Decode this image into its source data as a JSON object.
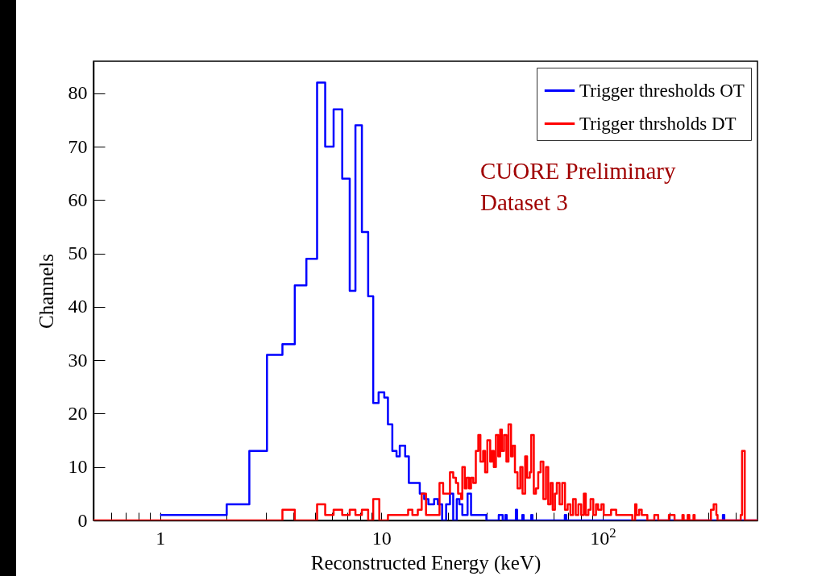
{
  "chart_data": {
    "type": "step",
    "xlabel": "Reconstructed Energy (keV)",
    "ylabel": "Channels",
    "log": "x",
    "xlim": [
      0.5,
      500
    ],
    "ylim": [
      0,
      86
    ],
    "xticks": [
      {
        "value": 0.6,
        "label": null
      },
      {
        "value": 0.7,
        "label": null
      },
      {
        "value": 0.8,
        "label": null
      },
      {
        "value": 0.9,
        "label": null
      },
      1,
      {
        "value": 2,
        "label": null
      },
      {
        "value": 3,
        "label": null
      },
      {
        "value": 4,
        "label": null
      },
      {
        "value": 5,
        "label": null
      },
      {
        "value": 6,
        "label": null
      },
      {
        "value": 7,
        "label": null
      },
      {
        "value": 8,
        "label": null
      },
      {
        "value": 9,
        "label": null
      },
      10,
      {
        "value": 20,
        "label": null
      },
      {
        "value": 30,
        "label": null
      },
      {
        "value": 40,
        "label": null
      },
      {
        "value": 50,
        "label": null
      },
      {
        "value": 60,
        "label": null
      },
      {
        "value": 70,
        "label": null
      },
      {
        "value": 80,
        "label": null
      },
      {
        "value": 90,
        "label": null
      },
      {
        "value": 100,
        "label": "10$^{2}$"
      },
      {
        "value": 200,
        "label": null
      },
      {
        "value": 300,
        "label": null
      },
      {
        "value": 400,
        "label": null
      }
    ],
    "yticks": [
      0,
      10,
      20,
      30,
      40,
      50,
      60,
      70,
      80
    ],
    "grid": false,
    "legend": "top right",
    "marker": "none",
    "line_style": "solid",
    "annotations": [
      "CUORE Preliminary",
      "Dataset 3"
    ],
    "series": [
      {
        "name": "Trigger thresholds OT",
        "color": "#0000ff",
        "x": [
          1,
          2.0,
          2.53,
          3.04,
          3.57,
          4.06,
          4.58,
          5.12,
          5.57,
          6.08,
          6.65,
          7.19,
          7.63,
          8.16,
          8.71,
          9.18,
          9.71,
          10.3,
          10.7,
          11.2,
          11.7,
          12.1,
          12.8,
          13.3,
          14.9,
          15.6,
          16.3,
          17.3,
          18.0,
          18.8,
          19.6,
          20.4,
          21.1,
          21.9,
          22.5,
          23.2,
          24.5,
          25.4,
          29.8,
          33.9,
          35.3,
          36.3,
          36.8,
          40.5,
          41.0,
          43.3,
          43.9,
          47.5,
          48.1,
          67.4,
          68.4,
          349,
          354,
          500
        ],
        "values": [
          1,
          3,
          13,
          31,
          33,
          44,
          49,
          82,
          70,
          77,
          64,
          43,
          74,
          54,
          42,
          22,
          24,
          23,
          18,
          13,
          12,
          14,
          12,
          7,
          5,
          4,
          3,
          4,
          3,
          0,
          3,
          5,
          0,
          4,
          3,
          1,
          5,
          1,
          0,
          1,
          0,
          1,
          0,
          2,
          0,
          1,
          0,
          1,
          0,
          1,
          0,
          1,
          0,
          0
        ]
      },
      {
        "name": "Trigger thrsholds DT",
        "color": "#ff0000",
        "x": [
          0.5,
          3.57,
          4.06,
          5.12,
          5.57,
          6.08,
          6.65,
          7.19,
          7.63,
          8.16,
          8.71,
          9.18,
          9.78,
          10.7,
          13.2,
          13.8,
          14.6,
          15.2,
          15.9,
          18.3,
          19.0,
          20.4,
          21.1,
          21.7,
          22.2,
          22.9,
          23.2,
          23.8,
          24.3,
          24.9,
          25.4,
          26.0,
          26.7,
          27.4,
          28.0,
          28.8,
          29.4,
          30.1,
          31.0,
          31.6,
          32.2,
          32.9,
          33.7,
          34.4,
          35.0,
          35.8,
          36.7,
          37.5,
          38.5,
          39.2,
          40.1,
          41.2,
          42.4,
          43.4,
          44.6,
          45.5,
          46.8,
          47.5,
          48.8,
          49.9,
          51.1,
          52.4,
          53.9,
          55.4,
          56.7,
          58.1,
          59.4,
          60.8,
          62.0,
          63.8,
          65.6,
          67.5,
          69.4,
          71.4,
          73.4,
          75.5,
          77.6,
          79.9,
          82.1,
          83.8,
          86.1,
          88.1,
          90.6,
          93.2,
          95.3,
          98.6,
          101,
          109,
          115,
          136,
          140,
          142,
          146,
          150,
          159,
          171,
          178,
          199,
          211,
          229,
          232,
          242,
          246,
          257,
          260,
          308,
          317,
          326,
          330,
          420,
          426,
          438,
          500
        ],
        "values": [
          0,
          2,
          0,
          3,
          1,
          2,
          1,
          2,
          1,
          2,
          0,
          4,
          0,
          1,
          2,
          1,
          2,
          5,
          1,
          7,
          5,
          9,
          8,
          7,
          5,
          4,
          10,
          6,
          8,
          6,
          8,
          7,
          13,
          16,
          11,
          13,
          9,
          15,
          11,
          13,
          10,
          16,
          12,
          17,
          13,
          16,
          11,
          18,
          12,
          14,
          9,
          6,
          10,
          5,
          12,
          8,
          9,
          16,
          5,
          6,
          9,
          11,
          4,
          10,
          3,
          7,
          2,
          5,
          7,
          3,
          7,
          2,
          3,
          1,
          4,
          1,
          3,
          1,
          5,
          1,
          2,
          4,
          1,
          3,
          2,
          3,
          1,
          2,
          1,
          0,
          3,
          1,
          2,
          1,
          0,
          1,
          0,
          1,
          0,
          1,
          0,
          1,
          0,
          1,
          0,
          2,
          3,
          1,
          0,
          1,
          13,
          0,
          0
        ]
      }
    ]
  }
}
